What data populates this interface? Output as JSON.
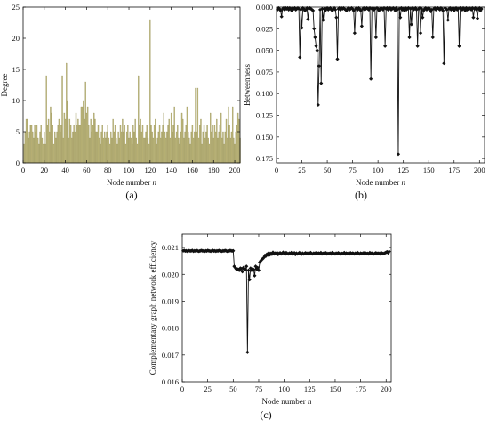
{
  "chart_data": [
    {
      "id": "a",
      "panel_label": "(a)",
      "type": "bar",
      "xlabel": "Node number n",
      "ylabel": "Degree",
      "xlim": [
        0,
        205
      ],
      "ylim": [
        0,
        25
      ],
      "xticks": [
        0,
        20,
        40,
        60,
        80,
        100,
        120,
        140,
        160,
        180,
        200
      ],
      "yticks": [
        0,
        5,
        10,
        15,
        20,
        25
      ],
      "bar_color": "#bdb67a",
      "x_start": 1,
      "values": [
        3,
        5,
        7,
        7,
        4,
        5,
        6,
        6,
        5,
        4,
        6,
        5,
        6,
        4,
        3,
        5,
        6,
        4,
        3,
        5,
        3,
        14,
        6,
        7,
        5,
        9,
        8,
        6,
        3,
        5,
        4,
        5,
        6,
        7,
        5,
        6,
        14,
        4,
        8,
        7,
        16,
        10,
        4,
        7,
        6,
        4,
        5,
        6,
        5,
        8,
        6,
        7,
        6,
        6,
        9,
        9,
        10,
        7,
        13,
        8,
        9,
        6,
        4,
        7,
        5,
        6,
        8,
        7,
        5,
        5,
        6,
        4,
        3,
        5,
        6,
        4,
        5,
        4,
        5,
        6,
        4,
        3,
        5,
        4,
        7,
        5,
        6,
        4,
        3,
        5,
        4,
        6,
        5,
        7,
        5,
        6,
        3,
        5,
        6,
        4,
        5,
        4,
        3,
        6,
        5,
        7,
        4,
        3,
        14,
        6,
        7,
        5,
        6,
        4,
        4,
        5,
        6,
        4,
        3,
        23,
        6,
        5,
        4,
        6,
        7,
        3,
        4,
        5,
        6,
        4,
        5,
        6,
        8,
        5,
        4,
        5,
        6,
        7,
        4,
        8,
        5,
        6,
        9,
        4,
        5,
        6,
        4,
        3,
        5,
        8,
        7,
        4,
        5,
        6,
        9,
        5,
        4,
        3,
        5,
        6,
        4,
        5,
        12,
        5,
        12,
        4,
        6,
        7,
        3,
        5,
        6,
        4,
        5,
        6,
        4,
        3,
        8,
        5,
        6,
        4,
        6,
        5,
        7,
        4,
        5,
        6,
        8,
        4,
        5,
        3,
        5,
        7,
        4,
        9,
        6,
        4,
        5,
        9,
        4,
        3,
        5,
        6,
        8,
        7,
        4
      ]
    },
    {
      "id": "b",
      "panel_label": "(b)",
      "type": "line",
      "xlabel": "Node number n",
      "ylabel": "Betweenness",
      "xlim": [
        0,
        205
      ],
      "ylim": [
        0.0,
        0.18
      ],
      "y_inverted": true,
      "xticks": [
        0,
        25,
        50,
        75,
        100,
        125,
        150,
        175,
        200
      ],
      "yticks": [
        0.0,
        0.025,
        0.05,
        0.075,
        0.1,
        0.125,
        0.15,
        0.175
      ],
      "ytick_labels": [
        "0.000",
        "0.025",
        "0.050",
        "0.075",
        "0.100",
        "0.125",
        "0.150",
        "0.175"
      ],
      "marker": "diamond",
      "color": "#111111",
      "x_start": 1,
      "values": [
        0.003,
        0.001,
        0.002,
        0.004,
        0.011,
        0.002,
        0.001,
        0.003,
        0.001,
        0.002,
        0.001,
        0.003,
        0.001,
        0.002,
        0.004,
        0.001,
        0.002,
        0.001,
        0.003,
        0.002,
        0.001,
        0.002,
        0.058,
        0.003,
        0.024,
        0.001,
        0.002,
        0.004,
        0.003,
        0.001,
        0.014,
        0.002,
        0.001,
        0.002,
        0.003,
        0.004,
        0.025,
        0.035,
        0.045,
        0.05,
        0.113,
        0.068,
        0.003,
        0.088,
        0.002,
        0.015,
        0.002,
        0.004,
        0.002,
        0.001,
        0.003,
        0.002,
        0.001,
        0.003,
        0.004,
        0.002,
        0.001,
        0.003,
        0.012,
        0.06,
        0.002,
        0.001,
        0.003,
        0.001,
        0.002,
        0.001,
        0.002,
        0.003,
        0.004,
        0.002,
        0.001,
        0.003,
        0.002,
        0.001,
        0.002,
        0.004,
        0.03,
        0.002,
        0.001,
        0.003,
        0.001,
        0.002,
        0.004,
        0.022,
        0.002,
        0.001,
        0.003,
        0.002,
        0.001,
        0.002,
        0.003,
        0.001,
        0.083,
        0.002,
        0.001,
        0.003,
        0.002,
        0.035,
        0.001,
        0.002,
        0.004,
        0.002,
        0.001,
        0.002,
        0.003,
        0.001,
        0.045,
        0.002,
        0.001,
        0.003,
        0.002,
        0.001,
        0.003,
        0.002,
        0.001,
        0.002,
        0.004,
        0.001,
        0.003,
        0.17,
        0.002,
        0.012,
        0.001,
        0.003,
        0.002,
        0.004,
        0.001,
        0.003,
        0.002,
        0.001,
        0.035,
        0.002,
        0.02,
        0.001,
        0.003,
        0.002,
        0.001,
        0.003,
        0.045,
        0.002,
        0.001,
        0.03,
        0.002,
        0.012,
        0.004,
        0.002,
        0.001,
        0.003,
        0.002,
        0.001,
        0.002,
        0.005,
        0.003,
        0.035,
        0.002,
        0.001,
        0.003,
        0.002,
        0.001,
        0.002,
        0.003,
        0.001,
        0.002,
        0.004,
        0.065,
        0.001,
        0.002,
        0.003,
        0.015,
        0.002,
        0.001,
        0.003,
        0.002,
        0.001,
        0.004,
        0.002,
        0.001,
        0.003,
        0.002,
        0.045,
        0.001,
        0.002,
        0.003,
        0.001,
        0.002,
        0.004,
        0.001,
        0.003,
        0.002,
        0.001,
        0.002,
        0.003,
        0.001,
        0.012,
        0.002,
        0.001,
        0.003,
        0.013,
        0.002,
        0.001,
        0.004,
        0.002
      ]
    },
    {
      "id": "c",
      "panel_label": "(c)",
      "type": "line",
      "xlabel": "Node number n",
      "ylabel": "Complementary graph network efficiency",
      "xlim": [
        0,
        205
      ],
      "ylim": [
        0.016,
        0.0215
      ],
      "xticks": [
        0,
        25,
        50,
        75,
        100,
        125,
        150,
        175,
        200
      ],
      "yticks": [
        0.016,
        0.017,
        0.018,
        0.019,
        0.02,
        0.021
      ],
      "ytick_labels": [
        "0.016",
        "0.017",
        "0.018",
        "0.019",
        "0.020",
        "0.021"
      ],
      "marker": "diamond",
      "color": "#111111",
      "x_start": 1,
      "values": [
        0.02088,
        0.02089,
        0.02087,
        0.02088,
        0.02086,
        0.02089,
        0.02088,
        0.02087,
        0.02088,
        0.02089,
        0.02086,
        0.02088,
        0.02087,
        0.02089,
        0.02088,
        0.02086,
        0.02087,
        0.02088,
        0.02089,
        0.02087,
        0.02088,
        0.02086,
        0.02088,
        0.02087,
        0.02089,
        0.02088,
        0.02087,
        0.02086,
        0.02088,
        0.02089,
        0.02087,
        0.02088,
        0.02086,
        0.02088,
        0.02087,
        0.02089,
        0.02088,
        0.02087,
        0.02086,
        0.02088,
        0.02087,
        0.02089,
        0.02088,
        0.02086,
        0.02088,
        0.02087,
        0.02089,
        0.02088,
        0.02087,
        0.02088,
        0.0203,
        0.02025,
        0.0202,
        0.0202,
        0.02018,
        0.02015,
        0.02023,
        0.02021,
        0.0201,
        0.02025,
        0.0202,
        0.02018,
        0.0203,
        0.0171,
        0.02015,
        0.0198,
        0.02023,
        0.02015,
        0.0202,
        0.02018,
        0.01995,
        0.0203,
        0.0202,
        0.02025,
        0.02015,
        0.02045,
        0.0205,
        0.02055,
        0.02058,
        0.02062,
        0.0207,
        0.02068,
        0.02075,
        0.02072,
        0.0208,
        0.02073,
        0.02078,
        0.02075,
        0.02082,
        0.02076,
        0.02079,
        0.02077,
        0.02081,
        0.02074,
        0.02078,
        0.0208,
        0.02076,
        0.02079,
        0.02082,
        0.02077,
        0.02075,
        0.02081,
        0.02078,
        0.02076,
        0.02079,
        0.02077,
        0.02081,
        0.02076,
        0.02078,
        0.0208,
        0.02074,
        0.02079,
        0.02076,
        0.02078,
        0.02081,
        0.02077,
        0.02075,
        0.02079,
        0.02076,
        0.02078,
        0.0208,
        0.02077,
        0.02079,
        0.02076,
        0.02078,
        0.02081,
        0.02077,
        0.02076,
        0.02079,
        0.02077,
        0.0208,
        0.02076,
        0.02078,
        0.02079,
        0.02077,
        0.02081,
        0.02076,
        0.02078,
        0.02079,
        0.02077,
        0.0208,
        0.02076,
        0.02078,
        0.02077,
        0.02079,
        0.02076,
        0.02081,
        0.02077,
        0.02078,
        0.02076,
        0.02079,
        0.02077,
        0.0208,
        0.02078,
        0.02076,
        0.02079,
        0.02077,
        0.02078,
        0.02081,
        0.02076,
        0.02079,
        0.02077,
        0.02078,
        0.02076,
        0.0208,
        0.02077,
        0.02079,
        0.02078,
        0.02076,
        0.02079,
        0.02077,
        0.02081,
        0.02078,
        0.02076,
        0.02079,
        0.02077,
        0.02078,
        0.0208,
        0.02076,
        0.02079,
        0.02077,
        0.02078,
        0.02076,
        0.02081,
        0.02078,
        0.02079,
        0.02077,
        0.02076,
        0.02078,
        0.0208,
        0.02077,
        0.02079,
        0.02078,
        0.02076,
        0.02081,
        0.02079,
        0.02077,
        0.02078,
        0.0208,
        0.02082,
        0.02084,
        0.0208,
        0.02085
      ]
    }
  ]
}
